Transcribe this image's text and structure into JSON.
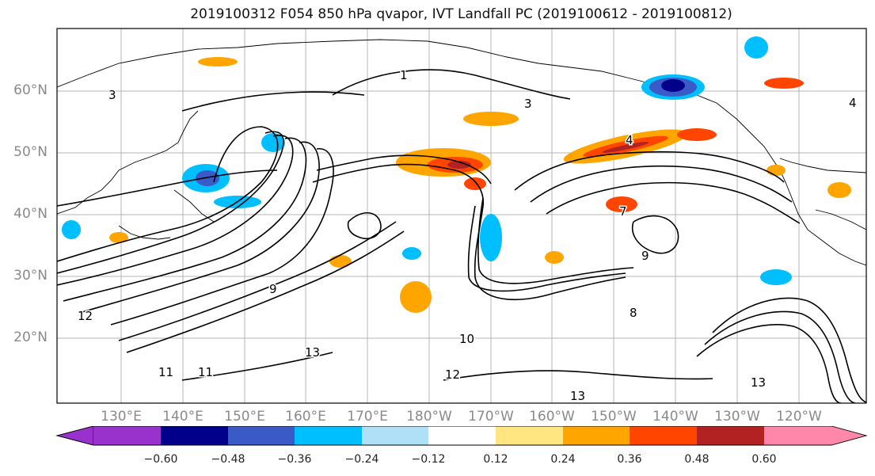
{
  "title": "2019100312 F054 850 hPa qvapor, IVT Landfall PC (2019100612 - 2019100812)",
  "lat_labels": [
    "60°N",
    "50°N",
    "40°N",
    "30°N",
    "20°N"
  ],
  "lon_labels": [
    "130°E",
    "140°E",
    "150°E",
    "160°E",
    "170°E",
    "180°W",
    "170°W",
    "160°W",
    "150°W",
    "140°W",
    "130°W",
    "120°W"
  ],
  "contour_labels": [
    "1",
    "3",
    "3",
    "4",
    "4",
    "7",
    "9",
    "12",
    "10",
    "12",
    "13",
    "11",
    "11",
    "13",
    "8",
    "9",
    "13"
  ],
  "colorbar": {
    "tick_labels": [
      "−0.60",
      "−0.48",
      "−0.36",
      "−0.24",
      "−0.12",
      "0.12",
      "0.24",
      "0.36",
      "0.48",
      "0.60"
    ],
    "colors": [
      "#9932cc",
      "#00008b",
      "#3a5bc7",
      "#00bfff",
      "#b0e0f8",
      "#ffffff",
      "#ffe680",
      "#ffa500",
      "#ff4500",
      "#b22222",
      "#ff88aa"
    ]
  },
  "colors": {
    "axis_label": "#8a8a8a",
    "contour": "#000000",
    "grid": "#b4b4b4"
  }
}
